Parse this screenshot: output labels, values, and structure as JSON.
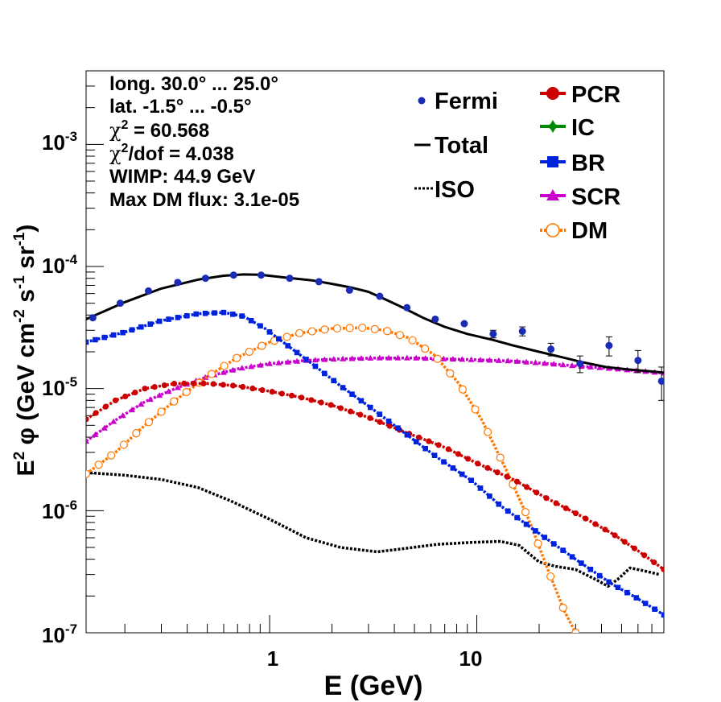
{
  "colors": {
    "fermi": "#1a2bb5",
    "total": "#000000",
    "iso": "#000000",
    "pcr": "#cc0000",
    "ic": "#008800",
    "br": "#0022dd",
    "scr": "#cc00cc",
    "dm": "#ff7700"
  },
  "info_lines": [
    "long. 30.0° ... 25.0°",
    "lat. -1.5° ... -0.5°",
    "χ² = 60.568",
    "χ²/dof = 4.038",
    "WIMP: 44.9 GeV",
    "Max DM flux: 3.1e-05"
  ],
  "info_pieces": {
    "l3_chi": "χ",
    "l3_sup": "2",
    "l3_rest": " = 60.568",
    "l4_chi": "χ",
    "l4_sup": "2",
    "l4_rest": "/dof = 4.038"
  },
  "legend": {
    "fermi": "Fermi",
    "total": "Total",
    "iso": "ISO",
    "pcr": "PCR",
    "ic": "IC",
    "br": "BR",
    "scr": "SCR",
    "dm": "DM"
  },
  "axis_text": {
    "x_title": "E (GeV)",
    "y_e": "E",
    "y_e_sup": "2",
    "y_phi": " φ (GeV cm",
    "y_m2": "-2",
    "y_s": " s",
    "y_m1a": "-1",
    "y_sr": " sr",
    "y_m1b": "-1",
    "y_close": ")",
    "x_ticks": [
      "1",
      "10"
    ],
    "y_base": "10",
    "y_exps": [
      "-7",
      "-6",
      "-5",
      "-4",
      "-3"
    ]
  },
  "chart_data": {
    "type": "scatter",
    "x_scale": "log",
    "y_scale": "log",
    "xlim": [
      0.13,
      80
    ],
    "ylim": [
      1e-07,
      0.004
    ],
    "xlabel": "E (GeV)",
    "ylabel": "E² φ (GeV cm⁻² s⁻¹ sr⁻¹)",
    "x_tick_labels": [
      "1",
      "10"
    ],
    "y_tick_labels": [
      "10^-7",
      "10^-6",
      "10^-5",
      "10^-4",
      "10^-3"
    ],
    "fermi": {
      "name": "Fermi",
      "x": [
        0.14,
        0.19,
        0.26,
        0.36,
        0.49,
        0.67,
        0.91,
        1.25,
        1.73,
        2.43,
        3.4,
        4.6,
        6.3,
        8.7,
        12,
        16.6,
        22.8,
        31.5,
        43.5,
        60,
        78
      ],
      "y": [
        3.8e-05,
        5e-05,
        6.3e-05,
        7.4e-05,
        8e-05,
        8.5e-05,
        8.5e-05,
        8e-05,
        7.5e-05,
        6.4e-05,
        5.7e-05,
        4.6e-05,
        3.7e-05,
        3.4e-05,
        2.8e-05,
        2.95e-05,
        2.1e-05,
        1.6e-05,
        2.25e-05,
        1.7e-05,
        1.15e-05
      ],
      "yerr": [
        0,
        0,
        0,
        0,
        0,
        0,
        0,
        0,
        0,
        0,
        0,
        0,
        0,
        0,
        2e-06,
        2.5e-06,
        2.5e-06,
        2.5e-06,
        4e-06,
        3.5e-06,
        3.5e-06
      ]
    },
    "series": [
      {
        "name": "Total",
        "style": "line",
        "x": [
          0.13,
          0.2,
          0.3,
          0.45,
          0.6,
          0.75,
          0.9,
          1.2,
          1.6,
          2.0,
          2.5,
          3.0,
          3.6,
          4.4,
          5.5,
          7,
          9,
          12,
          15,
          20,
          26,
          32,
          42,
          55,
          70,
          80
        ],
        "y": [
          3.7e-05,
          5.1e-05,
          6.6e-05,
          7.8e-05,
          8.4e-05,
          8.6e-05,
          8.55e-05,
          8.1e-05,
          7.7e-05,
          7.2e-05,
          6.7e-05,
          6.2e-05,
          5.4e-05,
          4.6e-05,
          3.8e-05,
          3.2e-05,
          2.8e-05,
          2.5e-05,
          2.25e-05,
          2e-05,
          1.8e-05,
          1.65e-05,
          1.5e-05,
          1.43e-05,
          1.38e-05,
          1.35e-05
        ]
      },
      {
        "name": "ISO",
        "style": "dotted",
        "x": [
          0.13,
          0.2,
          0.3,
          0.45,
          0.65,
          1.0,
          1.5,
          2.2,
          3.3,
          4.5,
          6.5,
          9.5,
          13,
          16,
          20,
          24,
          30,
          38,
          43,
          48,
          55,
          65,
          76
        ],
        "y": [
          2.05e-06,
          1.95e-06,
          1.8e-06,
          1.55e-06,
          1.2e-06,
          8.5e-07,
          6e-07,
          5e-07,
          4.6e-07,
          4.9e-07,
          5.3e-07,
          5.5e-07,
          5.6e-07,
          5.2e-07,
          3.8e-07,
          3.5e-07,
          3.3e-07,
          2.7e-07,
          2.4e-07,
          2.75e-07,
          3.4e-07,
          3.2e-07,
          3e-07
        ]
      },
      {
        "name": "PCR",
        "style": "markers",
        "x": [
          0.13,
          0.18,
          0.25,
          0.35,
          0.5,
          0.7,
          1.0,
          1.4,
          2.0,
          3.0,
          4.5,
          7,
          10,
          15,
          22,
          32,
          45,
          60,
          80
        ],
        "y": [
          5.6e-06,
          8e-06,
          1e-05,
          1.1e-05,
          1.1e-05,
          1.05e-05,
          9.5e-06,
          8.5e-06,
          7.3e-06,
          5.8e-06,
          4.4e-06,
          3.3e-06,
          2.45e-06,
          1.8e-06,
          1.25e-06,
          9e-07,
          6.5e-07,
          4.7e-07,
          3.3e-07
        ]
      },
      {
        "name": "BR",
        "style": "markers",
        "x": [
          0.13,
          0.2,
          0.3,
          0.45,
          0.6,
          0.75,
          0.95,
          1.2,
          1.6,
          2.2,
          3.0,
          4.5,
          6.5,
          9.5,
          13,
          20,
          30,
          45,
          60,
          80
        ],
        "y": [
          2.4e-05,
          2.9e-05,
          3.6e-05,
          4.1e-05,
          4.2e-05,
          3.9e-05,
          3.1e-05,
          2.3e-05,
          1.6e-05,
          1.05e-05,
          7.2e-06,
          4.3e-06,
          2.7e-06,
          1.75e-06,
          1.1e-06,
          6.5e-07,
          4e-07,
          2.5e-07,
          1.9e-07,
          1.4e-07
        ]
      },
      {
        "name": "SCR",
        "style": "markers",
        "x": [
          0.13,
          0.18,
          0.25,
          0.35,
          0.5,
          0.7,
          1.0,
          1.5,
          2.2,
          3.3,
          5,
          7,
          10,
          15,
          22,
          32,
          45,
          60,
          80
        ],
        "y": [
          3.7e-06,
          5.5e-06,
          7.8e-06,
          1e-05,
          1.25e-05,
          1.45e-05,
          1.6e-05,
          1.7e-05,
          1.75e-05,
          1.78e-05,
          1.78e-05,
          1.75e-05,
          1.72e-05,
          1.68e-05,
          1.6e-05,
          1.52e-05,
          1.46e-05,
          1.4e-05,
          1.34e-05
        ]
      },
      {
        "name": "DM",
        "style": "markers",
        "x": [
          0.13,
          0.18,
          0.25,
          0.35,
          0.5,
          0.7,
          1.0,
          1.4,
          2.0,
          2.8,
          3.6,
          4.7,
          6.2,
          8.2,
          10.6,
          13.8,
          17.8,
          22.5,
          26.5,
          30
        ],
        "y": [
          2e-06,
          3e-06,
          5e-06,
          8e-06,
          1.25e-05,
          1.8e-05,
          2.4e-05,
          2.85e-05,
          3.1e-05,
          3.15e-05,
          3e-05,
          2.6e-05,
          1.9e-05,
          1.1e-05,
          5.5e-06,
          2.2e-06,
          8.5e-07,
          3e-07,
          1.5e-07,
          1e-07
        ]
      }
    ],
    "legend_placement": "top-right",
    "grid": false
  }
}
